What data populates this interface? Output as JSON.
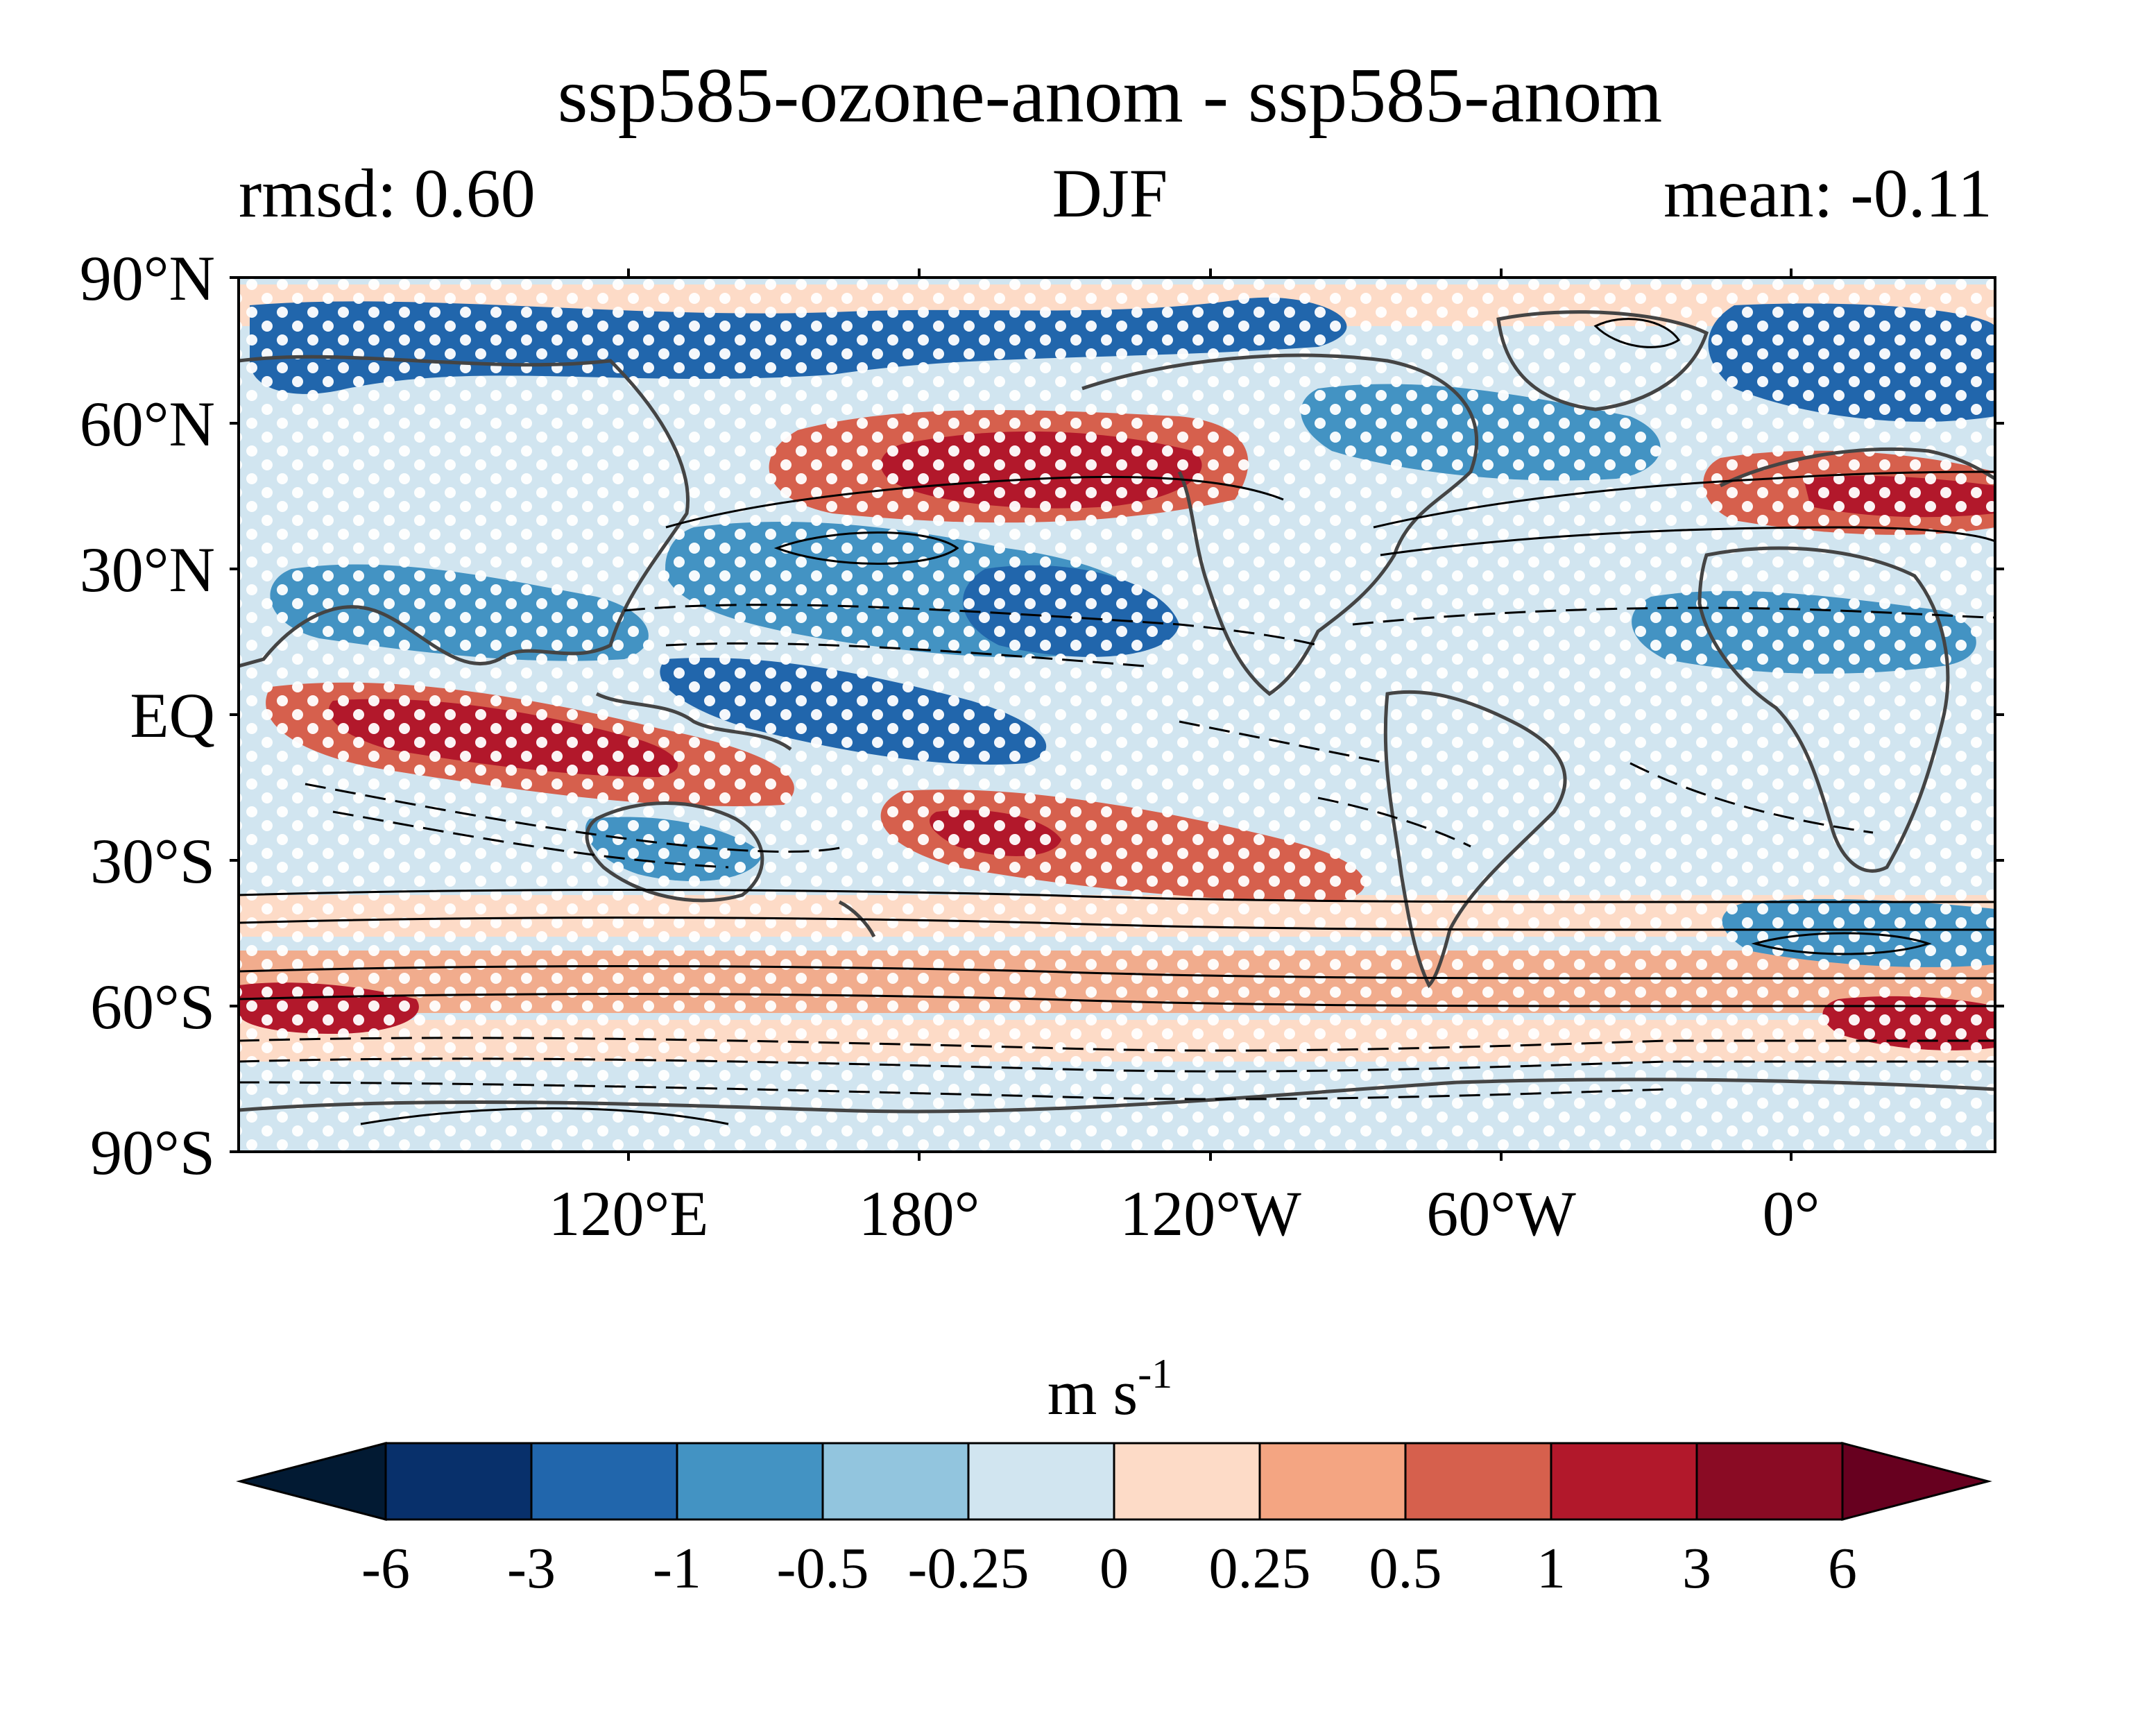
{
  "header": {
    "title": "ssp585-ozone-anom - ssp585-anom",
    "left_label": "rmsd: 0.60",
    "center_label": "DJF",
    "right_label": "mean: -0.11"
  },
  "map": {
    "projection": "equirectangular",
    "lat_ticks": [
      "90°N",
      "60°N",
      "30°N",
      "EQ",
      "30°S",
      "60°S",
      "90°S"
    ],
    "lon_ticks": [
      "120°E",
      "180°",
      "120°W",
      "60°W",
      "0°"
    ],
    "stippling": "white dots",
    "contours": "solid positive / dashed negative"
  },
  "colorbar": {
    "units_base": "m s",
    "units_exponent": "-1",
    "levels": [
      "-6",
      "-3",
      "-1",
      "-0.5",
      "-0.25",
      "0",
      "0.25",
      "0.5",
      "1",
      "3",
      "6"
    ],
    "colors": [
      "#08306b",
      "#2166ac",
      "#4393c3",
      "#92c5de",
      "#d1e5f0",
      "#fddbc7",
      "#f4a582",
      "#d6604d",
      "#b2182b",
      "#8a0b24"
    ],
    "extend_low_color": "#021a33",
    "extend_high_color": "#67001f"
  }
}
